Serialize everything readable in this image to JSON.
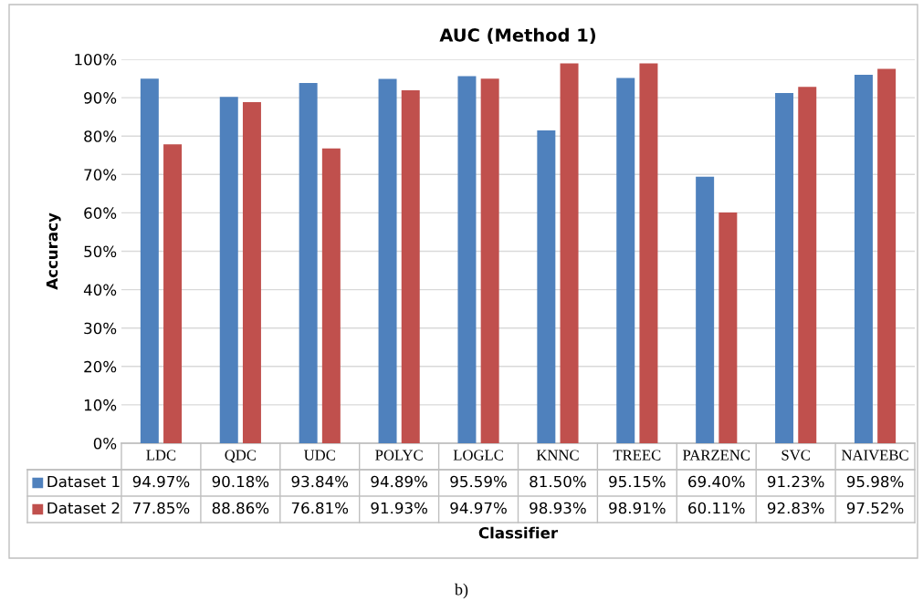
{
  "chart_data": {
    "type": "bar",
    "title": "AUC (Method 1)",
    "xlabel": "Classifier",
    "ylabel": "Accuracy",
    "categories": [
      "LDC",
      "QDC",
      "UDC",
      "POLYC",
      "LOGLC",
      "KNNC",
      "TREEC",
      "PARZENC",
      "SVC",
      "NAIVEBC"
    ],
    "series": [
      {
        "name": "Dataset 1",
        "color": "#4f81bd",
        "values": [
          94.97,
          90.18,
          93.84,
          94.89,
          95.59,
          81.5,
          95.15,
          69.4,
          91.23,
          95.98
        ],
        "value_labels": [
          "94.97%",
          "90.18%",
          "93.84%",
          "94.89%",
          "95.59%",
          "81.50%",
          "95.15%",
          "69.40%",
          "91.23%",
          "95.98%"
        ]
      },
      {
        "name": "Dataset 2",
        "color": "#c0504d",
        "values": [
          77.85,
          88.86,
          76.81,
          91.93,
          94.97,
          98.93,
          98.91,
          60.11,
          92.83,
          97.52
        ],
        "value_labels": [
          "77.85%",
          "88.86%",
          "76.81%",
          "91.93%",
          "94.97%",
          "98.93%",
          "98.91%",
          "60.11%",
          "92.83%",
          "97.52%"
        ]
      }
    ],
    "ylim": [
      0,
      100
    ],
    "yticks": [
      {
        "value": 0,
        "label": "0%"
      },
      {
        "value": 10,
        "label": "10%"
      },
      {
        "value": 20,
        "label": "20%"
      },
      {
        "value": 30,
        "label": "30%"
      },
      {
        "value": 40,
        "label": "40%"
      },
      {
        "value": 50,
        "label": "50%"
      },
      {
        "value": 60,
        "label": "60%"
      },
      {
        "value": 70,
        "label": "70%"
      },
      {
        "value": 80,
        "label": "80%"
      },
      {
        "value": 90,
        "label": "90%"
      },
      {
        "value": 100,
        "label": "100%"
      }
    ],
    "grid": "y",
    "legend": "bottom",
    "annotations": [
      "b)"
    ]
  }
}
